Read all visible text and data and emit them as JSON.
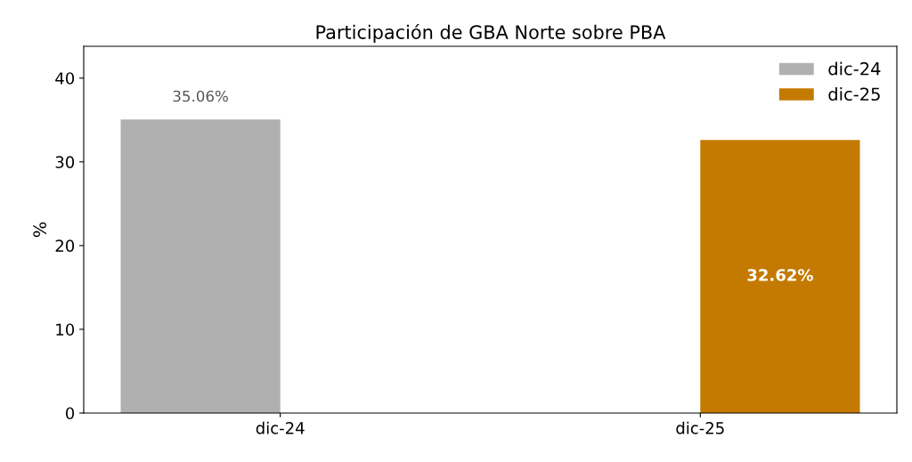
{
  "chart_data": {
    "type": "bar",
    "title": "Participación de GBA Norte sobre PBA",
    "ylabel": "%",
    "categories": [
      "dic-24",
      "dic-25"
    ],
    "series": [
      {
        "name": "dic-24",
        "color": "#b0b0b0",
        "values": [
          35.06,
          null
        ],
        "value_labels": [
          "35.06%",
          null
        ]
      },
      {
        "name": "dic-25",
        "color": "#c47a00",
        "values": [
          null,
          32.62
        ],
        "value_labels": [
          null,
          "32.62%"
        ]
      }
    ],
    "ylim": [
      0,
      43.8
    ],
    "yticks": [
      0,
      10,
      20,
      30,
      40
    ],
    "grid": false,
    "legend": "top right"
  }
}
